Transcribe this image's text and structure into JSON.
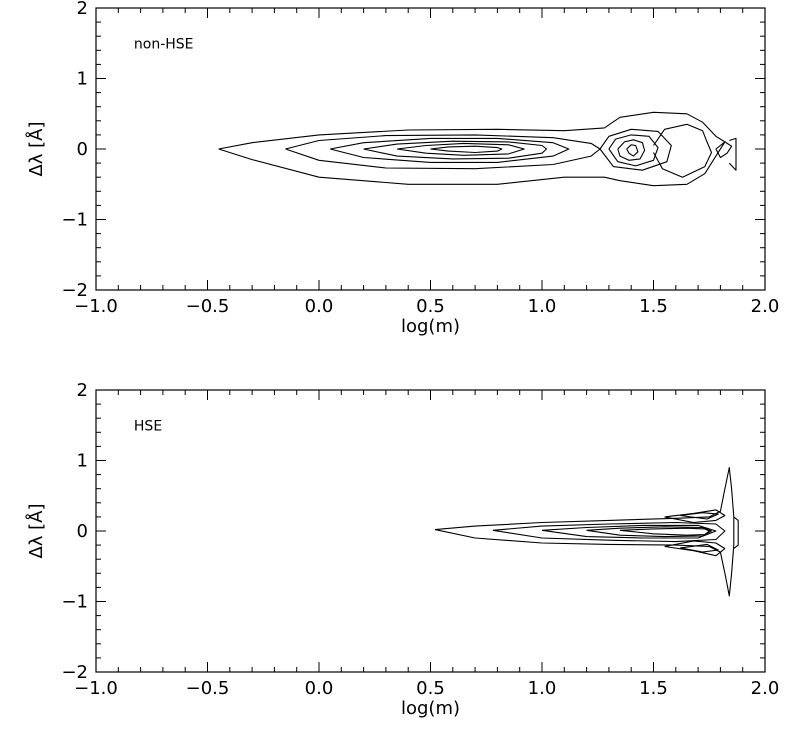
{
  "chart_data": [
    {
      "type": "contour",
      "panel_label": "non-HSE",
      "xlabel": "log(m)",
      "ylabel": "Δλ [Å]",
      "xlim": [
        -1.0,
        2.0
      ],
      "ylim": [
        -2.0,
        2.0
      ],
      "x_tick_labels": [
        "−1.0",
        "−0.5",
        "0.0",
        "0.5",
        "1.0",
        "1.5",
        "2.0"
      ],
      "y_tick_labels": [
        "−2",
        "−1",
        "0",
        "1",
        "2"
      ],
      "contours": [
        {
          "name": "level-1",
          "points": [
            [
              -0.45,
              0
            ],
            [
              -0.3,
              0.09
            ],
            [
              0.0,
              0.2
            ],
            [
              0.4,
              0.27
            ],
            [
              0.8,
              0.28
            ],
            [
              1.1,
              0.26
            ],
            [
              1.28,
              0.3
            ],
            [
              1.35,
              0.45
            ],
            [
              1.5,
              0.52
            ],
            [
              1.65,
              0.5
            ],
            [
              1.72,
              0.38
            ],
            [
              1.78,
              0.18
            ],
            [
              1.82,
              0.1
            ],
            [
              1.78,
              -0.1
            ],
            [
              1.73,
              -0.35
            ],
            [
              1.65,
              -0.5
            ],
            [
              1.5,
              -0.52
            ],
            [
              1.35,
              -0.45
            ],
            [
              1.28,
              -0.4
            ],
            [
              1.1,
              -0.4
            ],
            [
              0.8,
              -0.5
            ],
            [
              0.4,
              -0.5
            ],
            [
              0.0,
              -0.4
            ],
            [
              -0.3,
              -0.15
            ],
            [
              -0.45,
              0
            ]
          ]
        },
        {
          "name": "level-2",
          "points": [
            [
              -0.15,
              0
            ],
            [
              0.0,
              0.12
            ],
            [
              0.3,
              0.19
            ],
            [
              0.7,
              0.2
            ],
            [
              1.05,
              0.16
            ],
            [
              1.22,
              0.08
            ],
            [
              1.26,
              0
            ],
            [
              1.22,
              -0.1
            ],
            [
              1.05,
              -0.22
            ],
            [
              0.7,
              -0.28
            ],
            [
              0.3,
              -0.27
            ],
            [
              0.0,
              -0.16
            ],
            [
              -0.15,
              0
            ]
          ]
        },
        {
          "name": "level-3",
          "points": [
            [
              0.05,
              0
            ],
            [
              0.2,
              0.09
            ],
            [
              0.5,
              0.15
            ],
            [
              0.8,
              0.15
            ],
            [
              1.05,
              0.09
            ],
            [
              1.12,
              0
            ],
            [
              1.05,
              -0.1
            ],
            [
              0.8,
              -0.19
            ],
            [
              0.5,
              -0.19
            ],
            [
              0.2,
              -0.12
            ],
            [
              0.05,
              0
            ]
          ]
        },
        {
          "name": "level-4",
          "points": [
            [
              0.2,
              0
            ],
            [
              0.35,
              0.07
            ],
            [
              0.6,
              0.11
            ],
            [
              0.85,
              0.1
            ],
            [
              1.0,
              0.05
            ],
            [
              1.02,
              0
            ],
            [
              1.0,
              -0.06
            ],
            [
              0.85,
              -0.13
            ],
            [
              0.6,
              -0.14
            ],
            [
              0.35,
              -0.1
            ],
            [
              0.2,
              0
            ]
          ]
        },
        {
          "name": "level-5",
          "points": [
            [
              0.35,
              0
            ],
            [
              0.48,
              0.05
            ],
            [
              0.65,
              0.08
            ],
            [
              0.85,
              0.06
            ],
            [
              0.92,
              0
            ],
            [
              0.85,
              -0.07
            ],
            [
              0.65,
              -0.09
            ],
            [
              0.48,
              -0.06
            ],
            [
              0.35,
              0
            ]
          ]
        },
        {
          "name": "level-6",
          "points": [
            [
              0.5,
              0
            ],
            [
              0.58,
              0.03
            ],
            [
              0.7,
              0.04
            ],
            [
              0.8,
              0.02
            ],
            [
              0.82,
              0
            ],
            [
              0.8,
              -0.03
            ],
            [
              0.7,
              -0.05
            ],
            [
              0.58,
              -0.03
            ],
            [
              0.5,
              0
            ]
          ]
        },
        {
          "name": "blob-1",
          "points": [
            [
              1.26,
              0
            ],
            [
              1.3,
              0.18
            ],
            [
              1.4,
              0.28
            ],
            [
              1.52,
              0.25
            ],
            [
              1.58,
              0.05
            ],
            [
              1.56,
              -0.18
            ],
            [
              1.45,
              -0.3
            ],
            [
              1.32,
              -0.25
            ],
            [
              1.26,
              0
            ]
          ]
        },
        {
          "name": "blob-2",
          "points": [
            [
              1.3,
              0
            ],
            [
              1.33,
              0.14
            ],
            [
              1.4,
              0.2
            ],
            [
              1.48,
              0.18
            ],
            [
              1.52,
              0.02
            ],
            [
              1.5,
              -0.16
            ],
            [
              1.42,
              -0.24
            ],
            [
              1.34,
              -0.18
            ],
            [
              1.3,
              0
            ]
          ]
        },
        {
          "name": "blob-3",
          "points": [
            [
              1.34,
              0
            ],
            [
              1.37,
              0.1
            ],
            [
              1.41,
              0.13
            ],
            [
              1.45,
              0.09
            ],
            [
              1.46,
              -0.02
            ],
            [
              1.44,
              -0.14
            ],
            [
              1.39,
              -0.16
            ],
            [
              1.35,
              -0.1
            ],
            [
              1.34,
              0
            ]
          ]
        },
        {
          "name": "blob-4",
          "points": [
            [
              1.38,
              0
            ],
            [
              1.4,
              0.06
            ],
            [
              1.42,
              0.05
            ],
            [
              1.43,
              -0.04
            ],
            [
              1.41,
              -0.1
            ],
            [
              1.39,
              -0.06
            ],
            [
              1.38,
              0
            ]
          ]
        },
        {
          "name": "outer-wing",
          "points": [
            [
              1.5,
              0.05
            ],
            [
              1.55,
              0.28
            ],
            [
              1.65,
              0.35
            ],
            [
              1.72,
              0.26
            ],
            [
              1.74,
              0.1
            ],
            [
              1.76,
              -0.05
            ],
            [
              1.73,
              -0.25
            ],
            [
              1.63,
              -0.4
            ],
            [
              1.54,
              -0.28
            ],
            [
              1.5,
              -0.05
            ]
          ]
        },
        {
          "name": "edge-1",
          "points": [
            [
              1.78,
              0
            ],
            [
              1.82,
              0.1
            ],
            [
              1.85,
              0.04
            ],
            [
              1.83,
              -0.06
            ],
            [
              1.8,
              -0.12
            ],
            [
              1.78,
              0
            ]
          ]
        },
        {
          "name": "edge-2",
          "points": [
            [
              1.84,
              0.12
            ],
            [
              1.87,
              0.15
            ],
            [
              1.87,
              -0.3
            ],
            [
              1.84,
              -0.2
            ]
          ]
        }
      ]
    },
    {
      "type": "contour",
      "panel_label": "HSE",
      "xlabel": "log(m)",
      "ylabel": "Δλ [Å]",
      "xlim": [
        -1.0,
        2.0
      ],
      "ylim": [
        -2.0,
        2.0
      ],
      "x_tick_labels": [
        "−1.0",
        "−0.5",
        "0.0",
        "0.5",
        "1.0",
        "1.5",
        "2.0"
      ],
      "y_tick_labels": [
        "−2",
        "−1",
        "0",
        "1",
        "2"
      ],
      "contours": [
        {
          "name": "outer",
          "points": [
            [
              0.52,
              0.02
            ],
            [
              0.7,
              0.07
            ],
            [
              1.0,
              0.12
            ],
            [
              1.3,
              0.15
            ],
            [
              1.6,
              0.18
            ],
            [
              1.75,
              0.2
            ],
            [
              1.8,
              0.28
            ],
            [
              1.82,
              0.6
            ],
            [
              1.84,
              0.9
            ],
            [
              1.85,
              0.6
            ],
            [
              1.86,
              0.2
            ],
            [
              1.86,
              -0.2
            ],
            [
              1.85,
              -0.6
            ],
            [
              1.84,
              -0.92
            ],
            [
              1.82,
              -0.6
            ],
            [
              1.8,
              -0.3
            ],
            [
              1.75,
              -0.22
            ],
            [
              1.6,
              -0.2
            ],
            [
              1.3,
              -0.19
            ],
            [
              1.0,
              -0.17
            ],
            [
              0.7,
              -0.1
            ],
            [
              0.52,
              0.02
            ]
          ]
        },
        {
          "name": "inner-1",
          "points": [
            [
              0.78,
              0.01
            ],
            [
              1.0,
              0.07
            ],
            [
              1.3,
              0.1
            ],
            [
              1.6,
              0.12
            ],
            [
              1.78,
              0.1
            ],
            [
              1.82,
              0
            ],
            [
              1.78,
              -0.12
            ],
            [
              1.6,
              -0.15
            ],
            [
              1.3,
              -0.13
            ],
            [
              1.0,
              -0.1
            ],
            [
              0.78,
              0.01
            ]
          ]
        },
        {
          "name": "inner-2",
          "points": [
            [
              1.0,
              0.01
            ],
            [
              1.2,
              0.05
            ],
            [
              1.45,
              0.08
            ],
            [
              1.7,
              0.08
            ],
            [
              1.78,
              0
            ],
            [
              1.7,
              -0.1
            ],
            [
              1.45,
              -0.1
            ],
            [
              1.2,
              -0.08
            ],
            [
              1.0,
              0.01
            ]
          ]
        },
        {
          "name": "inner-3",
          "points": [
            [
              1.2,
              0.01
            ],
            [
              1.35,
              0.04
            ],
            [
              1.55,
              0.06
            ],
            [
              1.72,
              0.05
            ],
            [
              1.76,
              0
            ],
            [
              1.72,
              -0.07
            ],
            [
              1.55,
              -0.08
            ],
            [
              1.35,
              -0.06
            ],
            [
              1.2,
              0.01
            ]
          ]
        },
        {
          "name": "inner-4",
          "points": [
            [
              1.35,
              0.01
            ],
            [
              1.5,
              0.03
            ],
            [
              1.65,
              0.04
            ],
            [
              1.73,
              0.03
            ],
            [
              1.75,
              0
            ],
            [
              1.73,
              -0.05
            ],
            [
              1.65,
              -0.06
            ],
            [
              1.5,
              -0.04
            ],
            [
              1.35,
              0.01
            ]
          ]
        },
        {
          "name": "upper-lobe",
          "points": [
            [
              1.55,
              0.2
            ],
            [
              1.68,
              0.25
            ],
            [
              1.78,
              0.3
            ],
            [
              1.82,
              0.22
            ],
            [
              1.78,
              0.15
            ],
            [
              1.68,
              0.12
            ],
            [
              1.55,
              0.2
            ]
          ]
        },
        {
          "name": "upper-lobe-2",
          "points": [
            [
              1.62,
              0.22
            ],
            [
              1.72,
              0.26
            ],
            [
              1.79,
              0.24
            ],
            [
              1.74,
              0.17
            ],
            [
              1.62,
              0.22
            ]
          ]
        },
        {
          "name": "lower-lobe",
          "points": [
            [
              1.55,
              -0.22
            ],
            [
              1.68,
              -0.28
            ],
            [
              1.78,
              -0.35
            ],
            [
              1.82,
              -0.25
            ],
            [
              1.78,
              -0.17
            ],
            [
              1.68,
              -0.14
            ],
            [
              1.55,
              -0.22
            ]
          ]
        },
        {
          "name": "lower-lobe-2",
          "points": [
            [
              1.62,
              -0.24
            ],
            [
              1.72,
              -0.3
            ],
            [
              1.79,
              -0.27
            ],
            [
              1.74,
              -0.19
            ],
            [
              1.62,
              -0.24
            ]
          ]
        },
        {
          "name": "edge",
          "points": [
            [
              1.86,
              0.2
            ],
            [
              1.88,
              0.15
            ],
            [
              1.88,
              -0.2
            ],
            [
              1.86,
              -0.25
            ]
          ]
        }
      ]
    }
  ]
}
